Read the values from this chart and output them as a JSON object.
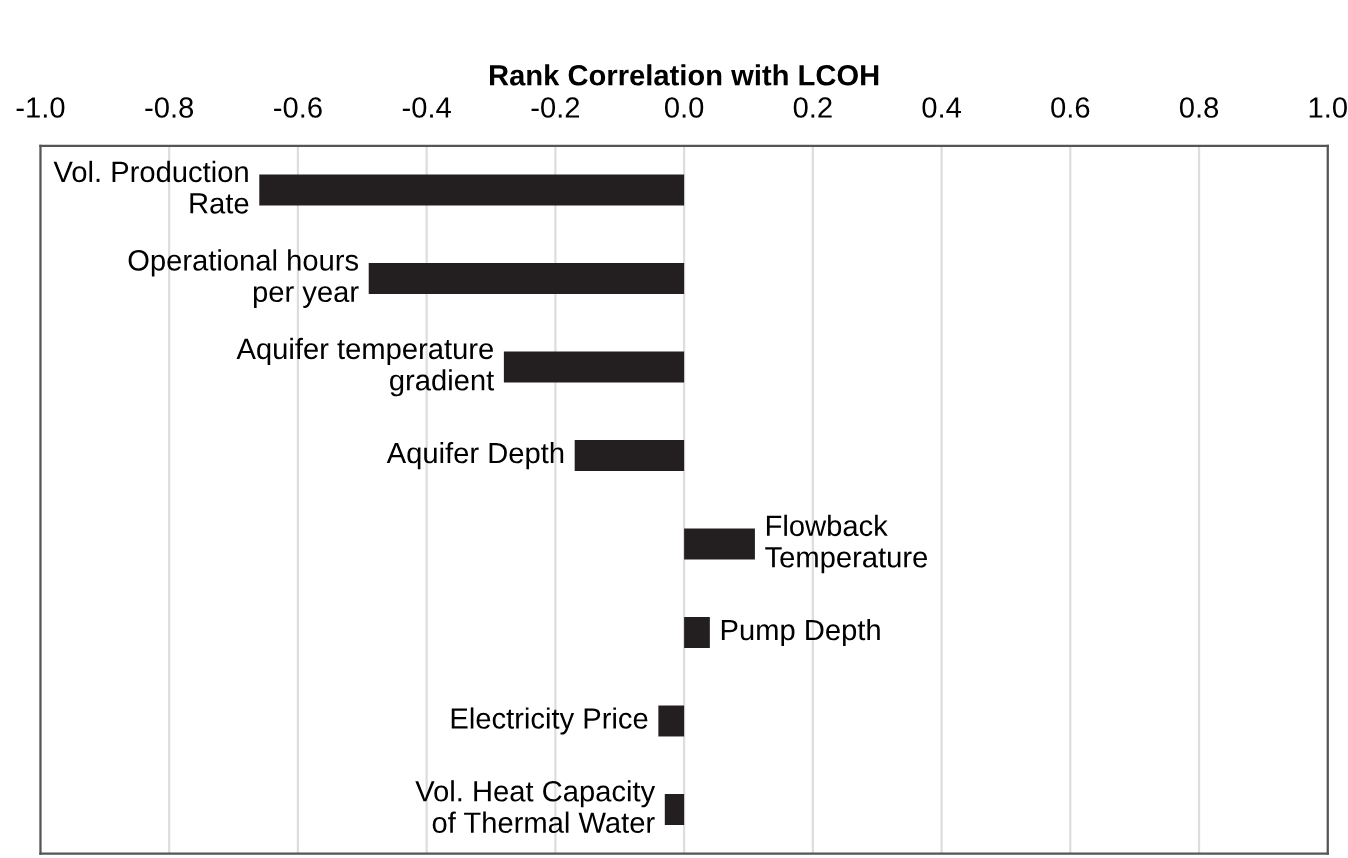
{
  "chart_data": {
    "type": "bar",
    "orientation": "horizontal",
    "xlabel": "Rank Correlation with LCOH",
    "categories": [
      "Vol. Production\nRate",
      "Operational hours\nper year",
      "Aquifer temperature\ngradient",
      "Aquifer Depth",
      "Flowback\nTemperature",
      "Pump Depth",
      "Electricity Price",
      "Vol. Heat Capacity\nof Thermal Water"
    ],
    "values": [
      -0.66,
      -0.49,
      -0.28,
      -0.17,
      0.11,
      0.04,
      -0.04,
      -0.03
    ],
    "color": "#231f20",
    "xlim": [
      -1.0,
      1.0
    ],
    "xticks": [
      {
        "value": -1.0,
        "label": "-1.0"
      },
      {
        "value": -0.8,
        "label": "-0.8"
      },
      {
        "value": -0.6,
        "label": "-0.6"
      },
      {
        "value": -0.4,
        "label": "-0.4"
      },
      {
        "value": -0.2,
        "label": "-0.2"
      },
      {
        "value": 0.0,
        "label": "0.0"
      },
      {
        "value": 0.2,
        "label": "0.2"
      },
      {
        "value": 0.4,
        "label": "0.4"
      },
      {
        "value": 0.6,
        "label": "0.6"
      },
      {
        "value": 0.8,
        "label": "0.8"
      },
      {
        "value": 1.0,
        "label": "1.0"
      }
    ],
    "grid": "x",
    "tick_labels": "x"
  }
}
